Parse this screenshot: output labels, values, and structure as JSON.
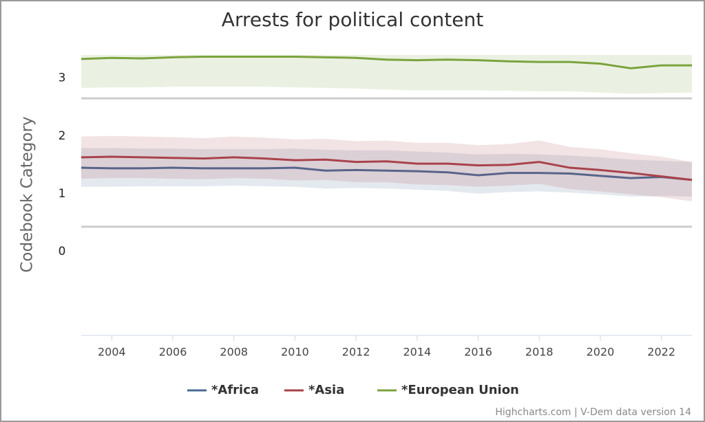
{
  "chart_data": {
    "type": "arearange-line",
    "title": "Arrests for political content",
    "y_axis_label": "Codebook Category",
    "credits": "Highcharts.com | V-Dem data version 14",
    "x": [
      2003,
      2004,
      2005,
      2006,
      2007,
      2008,
      2009,
      2010,
      2011,
      2012,
      2013,
      2014,
      2015,
      2016,
      2017,
      2018,
      2019,
      2020,
      2021,
      2022,
      2023
    ],
    "xlim": [
      2003,
      2023
    ],
    "xticks": [
      2004,
      2006,
      2008,
      2010,
      2012,
      2014,
      2016,
      2018,
      2020,
      2022
    ],
    "ylim": [
      -1.45,
      3.4
    ],
    "yticks": [
      0,
      1,
      2,
      3
    ],
    "plot_lines": [
      2.65,
      0.43
    ],
    "series": [
      {
        "name": "*Africa",
        "color": "#4a6a94",
        "values": [
          1.45,
          1.44,
          1.44,
          1.45,
          1.44,
          1.44,
          1.44,
          1.45,
          1.4,
          1.41,
          1.4,
          1.39,
          1.37,
          1.32,
          1.36,
          1.36,
          1.35,
          1.31,
          1.27,
          1.29,
          1.24
        ],
        "low": [
          1.12,
          1.12,
          1.13,
          1.13,
          1.13,
          1.14,
          1.13,
          1.12,
          1.09,
          1.1,
          1.09,
          1.07,
          1.05,
          1.0,
          1.03,
          1.04,
          1.02,
          0.99,
          0.95,
          0.96,
          0.95
        ],
        "high": [
          1.79,
          1.79,
          1.78,
          1.78,
          1.77,
          1.77,
          1.77,
          1.78,
          1.76,
          1.75,
          1.75,
          1.73,
          1.71,
          1.68,
          1.69,
          1.68,
          1.66,
          1.63,
          1.59,
          1.57,
          1.55
        ]
      },
      {
        "name": "*Asia",
        "color": "#a9424a",
        "values": [
          1.63,
          1.64,
          1.63,
          1.62,
          1.61,
          1.63,
          1.61,
          1.58,
          1.59,
          1.55,
          1.56,
          1.52,
          1.52,
          1.49,
          1.5,
          1.55,
          1.45,
          1.41,
          1.36,
          1.3,
          1.24
        ],
        "low": [
          1.26,
          1.27,
          1.27,
          1.26,
          1.25,
          1.27,
          1.26,
          1.23,
          1.24,
          1.2,
          1.2,
          1.16,
          1.15,
          1.12,
          1.14,
          1.17,
          1.08,
          1.04,
          0.99,
          0.94,
          0.87
        ],
        "high": [
          1.99,
          2.0,
          1.99,
          1.98,
          1.96,
          1.99,
          1.97,
          1.94,
          1.95,
          1.91,
          1.92,
          1.88,
          1.88,
          1.84,
          1.86,
          1.92,
          1.81,
          1.77,
          1.7,
          1.64,
          1.55
        ]
      },
      {
        "name": "*European Union",
        "color": "#7aa33d",
        "values": [
          3.33,
          3.35,
          3.34,
          3.36,
          3.37,
          3.37,
          3.37,
          3.37,
          3.36,
          3.35,
          3.32,
          3.31,
          3.32,
          3.31,
          3.29,
          3.28,
          3.28,
          3.25,
          3.17,
          3.22,
          3.22
        ],
        "low": [
          2.83,
          2.84,
          2.84,
          2.85,
          2.85,
          2.85,
          2.85,
          2.84,
          2.83,
          2.82,
          2.8,
          2.79,
          2.79,
          2.79,
          2.78,
          2.77,
          2.77,
          2.75,
          2.73,
          2.74,
          2.75
        ],
        "high": [
          3.4,
          3.4,
          3.4,
          3.4,
          3.4,
          3.4,
          3.4,
          3.4,
          3.4,
          3.4,
          3.4,
          3.4,
          3.4,
          3.4,
          3.4,
          3.4,
          3.4,
          3.4,
          3.4,
          3.4,
          3.4
        ]
      }
    ]
  }
}
